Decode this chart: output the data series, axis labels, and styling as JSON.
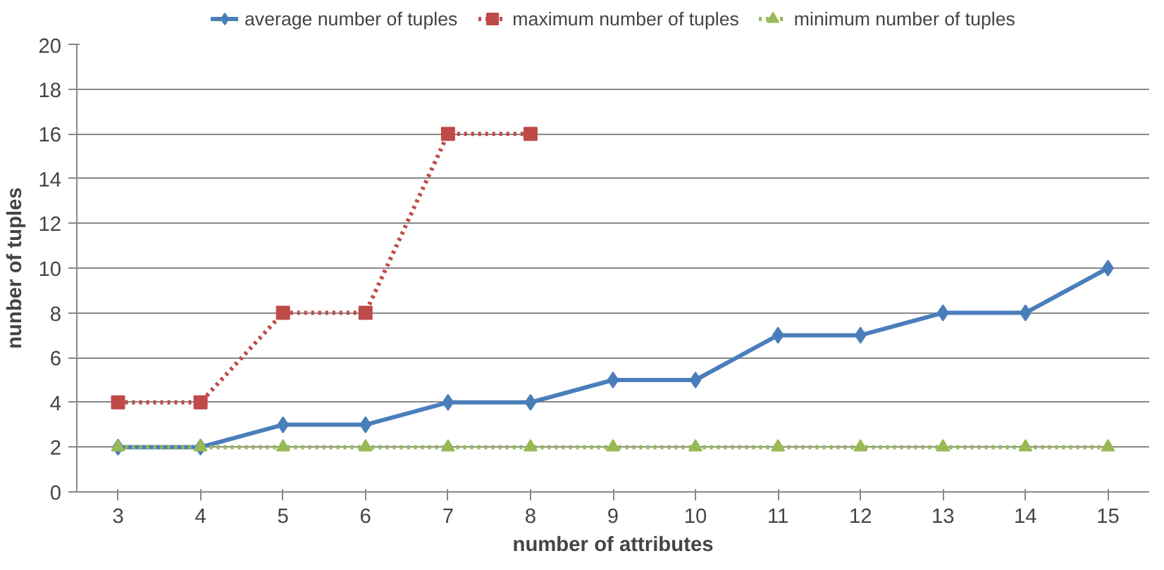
{
  "chart_data": {
    "type": "line",
    "xlabel": "number of attributes",
    "ylabel": "nunber of tuples",
    "categories": [
      "3",
      "4",
      "5",
      "6",
      "7",
      "8",
      "9",
      "10",
      "11",
      "12",
      "13",
      "14",
      "15"
    ],
    "series": [
      {
        "name": "average number of tuples",
        "color": "#4a7ebb",
        "marker": "diamond",
        "line_style": "solid",
        "values": [
          2,
          2,
          3,
          3,
          4,
          4,
          5,
          5,
          7,
          7,
          8,
          8,
          10
        ]
      },
      {
        "name": "maximum number of tuples",
        "color": "#be4b48",
        "marker": "square",
        "line_style": "dotted",
        "values": [
          4,
          4,
          8,
          8,
          16,
          16,
          null,
          null,
          null,
          null,
          null,
          null,
          null
        ]
      },
      {
        "name": "minimum number of tuples",
        "color": "#98b954",
        "marker": "triangle",
        "line_style": "dotted",
        "values": [
          2,
          2,
          2,
          2,
          2,
          2,
          2,
          2,
          2,
          2,
          2,
          2,
          2
        ]
      }
    ],
    "ylim": [
      0,
      20
    ],
    "yticks": [
      0,
      2,
      4,
      6,
      8,
      10,
      12,
      14,
      16,
      18,
      20
    ],
    "grid": "y",
    "legend": "top"
  }
}
